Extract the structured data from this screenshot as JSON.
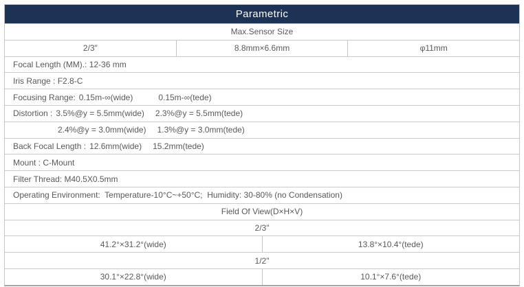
{
  "title": "Parametric",
  "sensor": {
    "header": "Max.Sensor Size",
    "size": "2/3\"",
    "dimensions": "8.8mm×6.6mm",
    "diameter": "φ11mm"
  },
  "specs": {
    "focal_length": "Focal Length (MM).: 12-36 mm",
    "iris_range": "Iris Range : F2.8-C",
    "focusing_label": "Focusing Range:",
    "focusing_wide": "0.15m-∞(wide)",
    "focusing_tele": "0.15m-∞(tede)",
    "distortion_label": "Distortion :",
    "distortion_wide_55": "3.5%@y = 5.5mm(wide)",
    "distortion_tele_55": "2.3%@y = 5.5mm(tede)",
    "distortion_wide_30": "2.4%@y = 3.0mm(wide)",
    "distortion_tele_30": "1.3%@y = 3.0mm(tede)",
    "back_focal_label": "Back Focal Length :",
    "back_focal_wide": "12.6mm(wide)",
    "back_focal_tele": "15.2mm(tede)",
    "mount": "Mount : C-Mount",
    "filter_thread": "Filter Thread: M40.5X0.5mm",
    "operating_environment": "Operating Environment:  Temperature-10°C~+50°C;  Humidity: 30-80% (no Condensation)"
  },
  "field_of_view": {
    "header": "Field Of View(D×H×V)",
    "sections": [
      {
        "sensor": "2/3\"",
        "wide": "41.2°×31.2°(wide)",
        "tele": "13.8°×10.4°(tede)"
      },
      {
        "sensor": "1/2\"",
        "wide": "30.1°×22.8°(wide)",
        "tele": "10.1°×7.6°(tede)"
      }
    ]
  },
  "colors": {
    "header_bg": "#1c3355",
    "header_text": "#ffffff",
    "body_text": "#58595b",
    "border": "#cbcbcb",
    "bottom_border": "#a6a6a6"
  }
}
